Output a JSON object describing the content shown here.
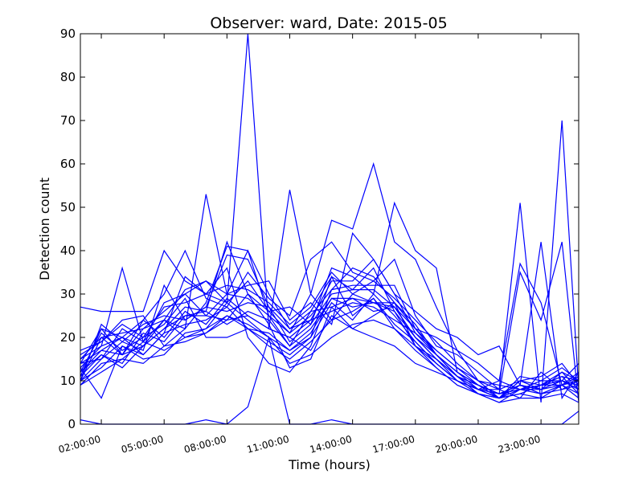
{
  "chart_data": {
    "type": "line",
    "title": "Observer: ward, Date: 2015-05",
    "xlabel": "Time (hours)",
    "ylabel": "Detection count",
    "xlim": [
      1,
      24.8
    ],
    "ylim": [
      0,
      90
    ],
    "x_ticks": [
      2,
      5,
      8,
      11,
      14,
      17,
      20,
      23
    ],
    "x_tick_labels": [
      "02:00:00",
      "05:00:00",
      "08:00:00",
      "11:00:00",
      "14:00:00",
      "17:00:00",
      "20:00:00",
      "23:00:00"
    ],
    "y_ticks": [
      0,
      10,
      20,
      30,
      40,
      50,
      60,
      70,
      80,
      90
    ],
    "y_tick_labels": [
      "0",
      "10",
      "20",
      "30",
      "40",
      "50",
      "60",
      "70",
      "80",
      "90"
    ],
    "line_color": "#0000ff",
    "x": [
      1,
      2,
      3,
      4,
      5,
      6,
      7,
      8,
      9,
      10,
      11,
      12,
      13,
      14,
      15,
      16,
      17,
      18,
      19,
      20,
      21,
      22,
      23,
      24,
      24.8
    ],
    "series": [
      {
        "values": [
          27,
          26,
          26,
          26,
          40,
          33,
          30,
          28,
          90,
          22,
          20,
          17,
          25,
          22,
          20,
          18,
          14,
          12,
          10,
          8,
          8,
          6,
          12,
          8,
          10
        ]
      },
      {
        "values": [
          10,
          20,
          16,
          22,
          24,
          22,
          53,
          30,
          40,
          25,
          21,
          30,
          24,
          30,
          28,
          28,
          22,
          20,
          17,
          10,
          9,
          8,
          9,
          9,
          12
        ]
      },
      {
        "values": [
          15,
          18,
          36,
          19,
          28,
          30,
          25,
          24,
          25,
          22,
          54,
          30,
          47,
          45,
          60,
          42,
          38,
          27,
          17,
          14,
          10,
          8,
          10,
          10,
          14
        ]
      },
      {
        "values": [
          12,
          17,
          20,
          24,
          30,
          40,
          29,
          27,
          35,
          29,
          25,
          38,
          42,
          35,
          33,
          38,
          25,
          18,
          16,
          12,
          8,
          51,
          5,
          70,
          8
        ]
      },
      {
        "values": [
          14,
          22,
          20,
          18,
          22,
          27,
          26,
          42,
          30,
          26,
          27,
          23,
          36,
          34,
          30,
          51,
          40,
          36,
          12,
          8,
          10,
          37,
          28,
          9,
          10
        ]
      },
      {
        "values": [
          9,
          14,
          15,
          19,
          17,
          20,
          22,
          28,
          24,
          20,
          14,
          16,
          20,
          23,
          24,
          22,
          18,
          15,
          11,
          9,
          7,
          35,
          24,
          42,
          5
        ]
      },
      {
        "values": [
          11,
          16,
          13,
          18,
          24,
          31,
          33,
          30,
          32,
          33,
          24,
          28,
          23,
          44,
          38,
          30,
          26,
          22,
          20,
          16,
          18,
          9,
          42,
          6,
          12
        ]
      },
      {
        "values": [
          13,
          18,
          20,
          16,
          21,
          34,
          30,
          36,
          20,
          14,
          12,
          18,
          31,
          36,
          34,
          28,
          23,
          16,
          12,
          9,
          6,
          10,
          11,
          14,
          9
        ]
      },
      {
        "values": [
          16,
          19,
          24,
          25,
          18,
          22,
          28,
          41,
          40,
          30,
          22,
          26,
          34,
          31,
          36,
          26,
          20,
          15,
          10,
          7,
          5,
          8,
          9,
          11,
          7
        ]
      },
      {
        "values": [
          10,
          23,
          19,
          17,
          32,
          24,
          27,
          39,
          38,
          27,
          22,
          24,
          33,
          33,
          38,
          30,
          21,
          17,
          13,
          10,
          6,
          10,
          8,
          12,
          8
        ]
      },
      {
        "values": [
          14,
          15,
          22,
          19,
          24,
          20,
          21,
          24,
          30,
          23,
          13,
          15,
          27,
          22,
          25,
          28,
          18,
          13,
          9,
          7,
          6,
          11,
          10,
          13,
          10
        ]
      },
      {
        "values": [
          12,
          21,
          17,
          20,
          23,
          29,
          20,
          20,
          22,
          21,
          17,
          20,
          34,
          25,
          29,
          23,
          19,
          14,
          10,
          8,
          6,
          9,
          8,
          9,
          11
        ]
      },
      {
        "values": [
          15,
          20,
          21,
          22,
          26,
          30,
          33,
          28,
          33,
          26,
          21,
          25,
          31,
          32,
          32,
          32,
          22,
          16,
          11,
          7,
          6,
          7,
          9,
          10,
          8
        ]
      },
      {
        "values": [
          10,
          13,
          18,
          16,
          21,
          23,
          24,
          27,
          22,
          19,
          16,
          20,
          28,
          24,
          30,
          25,
          19,
          14,
          10,
          8,
          6,
          7,
          6,
          9,
          6
        ]
      },
      {
        "values": [
          12,
          16,
          14,
          21,
          19,
          25,
          26,
          23,
          26,
          24,
          18,
          22,
          29,
          29,
          26,
          27,
          20,
          16,
          12,
          9,
          7,
          9,
          7,
          8,
          9
        ]
      },
      {
        "values": [
          9,
          12,
          15,
          14,
          18,
          19,
          21,
          25,
          22,
          18,
          15,
          19,
          24,
          26,
          29,
          22,
          17,
          13,
          9,
          7,
          5,
          6,
          6,
          7,
          5
        ]
      },
      {
        "values": [
          17,
          19,
          23,
          20,
          27,
          28,
          30,
          32,
          31,
          28,
          23,
          27,
          35,
          30,
          33,
          29,
          24,
          19,
          14,
          10,
          8,
          10,
          9,
          11,
          10
        ]
      },
      {
        "values": [
          11,
          22,
          16,
          24,
          20,
          26,
          23,
          29,
          25,
          22,
          20,
          24,
          26,
          28,
          27,
          24,
          21,
          16,
          11,
          8,
          7,
          8,
          8,
          10,
          9
        ]
      },
      {
        "values": [
          13,
          6,
          18,
          15,
          16,
          21,
          22,
          25,
          23,
          20,
          17,
          21,
          29,
          27,
          28,
          26,
          18,
          14,
          10,
          8,
          6,
          8,
          7,
          9,
          7
        ]
      },
      {
        "values": [
          10,
          15,
          19,
          23,
          25,
          24,
          27,
          26,
          28,
          27,
          19,
          23,
          30,
          31,
          31,
          27,
          22,
          17,
          13,
          9,
          7,
          9,
          8,
          10,
          8
        ]
      },
      {
        "values": [
          14,
          17,
          16,
          18,
          22,
          25,
          25,
          30,
          29,
          25,
          18,
          26,
          27,
          29,
          28,
          27,
          20,
          15,
          11,
          9,
          7,
          8,
          9,
          12,
          10
        ]
      },
      {
        "values": [
          1,
          0,
          0,
          0,
          0,
          0,
          1,
          0,
          4,
          20,
          0,
          0,
          1,
          0,
          0,
          0,
          0,
          0,
          0,
          0,
          0,
          0,
          0,
          0,
          3
        ]
      }
    ]
  }
}
